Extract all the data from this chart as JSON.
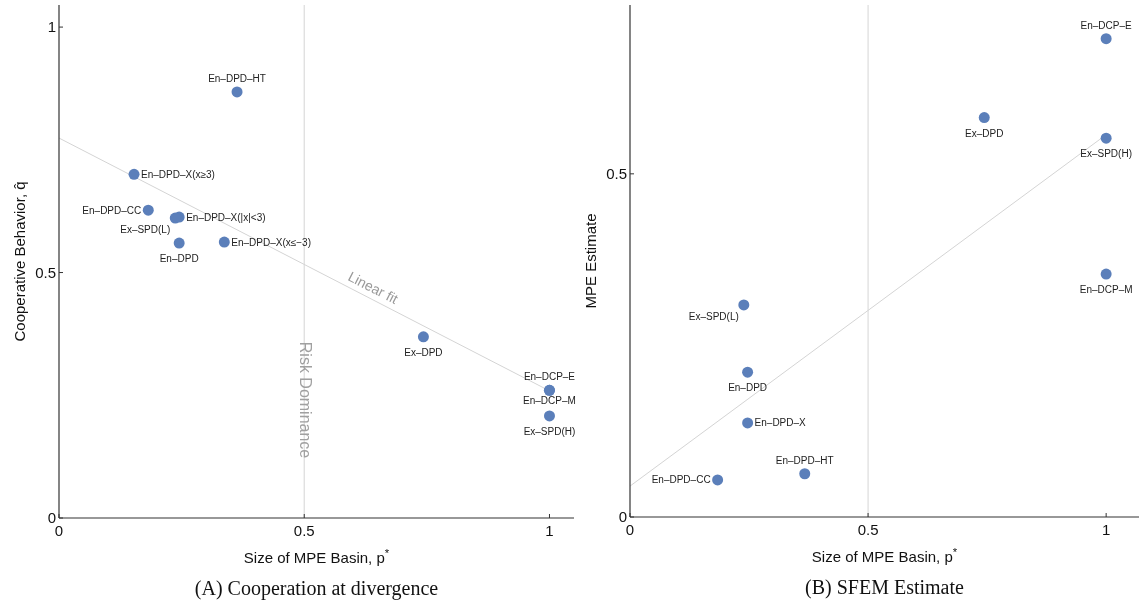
{
  "chart_data": [
    {
      "type": "scatter",
      "title": "(A) Cooperation at divergence",
      "xlabel": "Size of MPE Basin, p$^{*}$",
      "ylabel": "Cooperative Behavior, q̂",
      "xlim": [
        0,
        1.05
      ],
      "ylim": [
        0,
        1.045
      ],
      "xticks": [
        0,
        0.5,
        1
      ],
      "yticks": [
        0,
        0.5,
        1
      ],
      "grid": false,
      "legend": false,
      "marker": "circle",
      "ref_lines": [
        {
          "axis": "x",
          "value": 0.5,
          "label": "Risk Dominance",
          "color": "#dcdcdc"
        }
      ],
      "series": [
        {
          "name": "En–DPD–HT",
          "color": "#5b7fba",
          "x": [
            0.363
          ],
          "values": [
            0.868
          ]
        },
        {
          "name": "En–DPD–X(x≥3)",
          "color": "#5b7fba",
          "x": [
            0.153
          ],
          "values": [
            0.7
          ]
        },
        {
          "name": "En–DPD–CC",
          "color": "#5b7fba",
          "x": [
            0.182
          ],
          "values": [
            0.627
          ]
        },
        {
          "name": "En–DPD–X(|x|<3)",
          "color": "#5b7fba",
          "x": [
            0.245
          ],
          "values": [
            0.613
          ]
        },
        {
          "name": "Ex–SPD(L)",
          "color": "#5b7fba",
          "x": [
            0.237
          ],
          "values": [
            0.611
          ]
        },
        {
          "name": "En–DPD",
          "color": "#5b7fba",
          "x": [
            0.245
          ],
          "values": [
            0.56
          ]
        },
        {
          "name": "En–DPD–X(x≤−3)",
          "color": "#5b7fba",
          "x": [
            0.337
          ],
          "values": [
            0.562
          ]
        },
        {
          "name": "Ex–DPD",
          "color": "#5b7fba",
          "x": [
            0.743
          ],
          "values": [
            0.369
          ]
        },
        {
          "name": "En–DCP–E",
          "color": "#5b7fba",
          "x": [
            1
          ],
          "values": [
            0.26
          ]
        },
        {
          "name": "En–DCP–M",
          "color": "#5b7fba",
          "x": [
            1
          ],
          "values": [
            0.26
          ]
        },
        {
          "name": "Ex–SPD(H)",
          "color": "#5b7fba",
          "x": [
            1
          ],
          "values": [
            0.208
          ]
        },
        {
          "name": "Linear fit",
          "type": "line",
          "marker": "none",
          "color": "#d4d4d4",
          "x": [
            0,
            1
          ],
          "values": [
            0.774,
            0.259
          ]
        }
      ]
    },
    {
      "type": "scatter",
      "title": "(B) SFEM Estimate",
      "xlabel": "Size of MPE Basin, p$^{*}$",
      "ylabel": "MPE Estimate",
      "xlim": [
        0,
        1.069
      ],
      "ylim": [
        0,
        0.746
      ],
      "xticks": [
        0,
        0.5,
        1
      ],
      "yticks": [
        0,
        0.5
      ],
      "grid": false,
      "legend": false,
      "marker": "circle",
      "ref_lines": [
        {
          "axis": "x",
          "value": 0.5,
          "color": "#dcdcdc"
        }
      ],
      "series": [
        {
          "name": "En–DCP–E",
          "color": "#5b7fba",
          "x": [
            1
          ],
          "values": [
            0.697
          ]
        },
        {
          "name": "Ex–DPD",
          "color": "#5b7fba",
          "x": [
            0.744
          ],
          "values": [
            0.582
          ]
        },
        {
          "name": "Ex–SPD(H)",
          "color": "#5b7fba",
          "x": [
            1
          ],
          "values": [
            0.552
          ]
        },
        {
          "name": "En–DCP–M",
          "color": "#5b7fba",
          "x": [
            1
          ],
          "values": [
            0.354
          ]
        },
        {
          "name": "Ex–SPD(L)",
          "color": "#5b7fba",
          "x": [
            0.239
          ],
          "values": [
            0.309
          ]
        },
        {
          "name": "En–DPD",
          "color": "#5b7fba",
          "x": [
            0.247
          ],
          "values": [
            0.211
          ]
        },
        {
          "name": "En–DPD–X",
          "color": "#5b7fba",
          "x": [
            0.247
          ],
          "values": [
            0.137
          ]
        },
        {
          "name": "En–DPD–HT",
          "color": "#5b7fba",
          "x": [
            0.367
          ],
          "values": [
            0.063
          ]
        },
        {
          "name": "En–DPD–CC",
          "color": "#5b7fba",
          "x": [
            0.184
          ],
          "values": [
            0.054
          ]
        },
        {
          "type": "line",
          "marker": "none",
          "color": "#d4d4d4",
          "x": [
            0,
            1
          ],
          "values": [
            0.045,
            0.557
          ]
        }
      ]
    }
  ]
}
